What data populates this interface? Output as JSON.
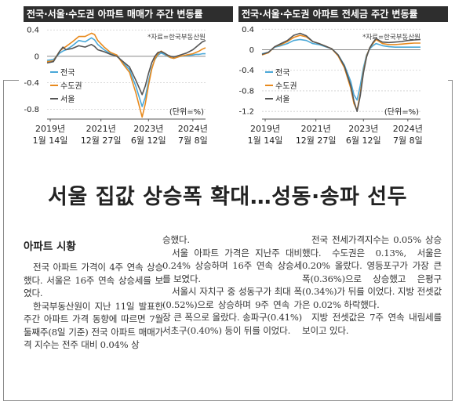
{
  "charts": [
    {
      "title": "전국·서울·수도권 아파트 매매가 주간 변동률",
      "source": "*자료=한국부동산원",
      "unit": "(단위=%)",
      "y_ticks": [
        "0.4",
        "0",
        "-0.4",
        "-0.8"
      ],
      "x_ticks": [
        [
          "2019년",
          "1월 14일"
        ],
        [
          "2021년",
          "12월 27일"
        ],
        [
          "2023년",
          "6월 12일"
        ],
        [
          "2024년",
          "7월 8일"
        ]
      ],
      "legend": [
        "전국",
        "수도권",
        "서울"
      ]
    },
    {
      "title": "전국·서울·수도권 아파트 전세금 주간 변동률",
      "source": "*자료=한국부동산원",
      "unit": "(단위=%)",
      "y_ticks": [
        "0.4",
        "0",
        "-0.4",
        "-0.8",
        "-1.2"
      ],
      "x_ticks": [
        [
          "2019년",
          "1월 14일"
        ],
        [
          "2021년",
          "12월 27일"
        ],
        [
          "2023년",
          "6월 12일"
        ],
        [
          "2024년",
          "7월 8일"
        ]
      ],
      "legend": [
        "전국",
        "수도권",
        "서울"
      ]
    }
  ],
  "chart_data": [
    {
      "type": "line",
      "ylim": [
        -0.95,
        0.45
      ],
      "x": [
        0,
        4,
        8,
        10,
        12,
        16,
        20,
        24,
        28,
        30,
        32,
        36,
        40,
        44,
        48,
        52,
        56,
        60,
        62,
        64,
        66,
        68,
        70,
        72,
        74,
        76,
        78,
        80,
        84,
        88,
        92,
        94,
        96,
        98,
        100
      ],
      "series": [
        {
          "name": "전국",
          "color": "#4aa8d8",
          "values": [
            -0.06,
            -0.05,
            0.05,
            0.08,
            0.1,
            0.16,
            0.24,
            0.22,
            0.28,
            0.25,
            0.18,
            0.1,
            0.04,
            0.02,
            -0.1,
            -0.2,
            -0.45,
            -0.76,
            -0.62,
            -0.38,
            -0.18,
            -0.05,
            0.02,
            0.05,
            0.03,
            0.0,
            -0.02,
            -0.03,
            0.0,
            0.01,
            0.02,
            0.03,
            0.03,
            0.04,
            0.04
          ]
        },
        {
          "name": "수도권",
          "color": "#e88a1e",
          "values": [
            -0.08,
            -0.07,
            0.08,
            0.12,
            0.15,
            0.22,
            0.3,
            0.3,
            0.35,
            0.33,
            0.24,
            0.14,
            0.06,
            0.02,
            -0.12,
            -0.24,
            -0.55,
            -0.92,
            -0.72,
            -0.44,
            -0.2,
            -0.04,
            0.04,
            0.08,
            0.05,
            0.01,
            -0.02,
            -0.03,
            0.0,
            0.02,
            0.04,
            0.06,
            0.08,
            0.11,
            0.13
          ]
        },
        {
          "name": "서울",
          "color": "#555555",
          "values": [
            -0.1,
            -0.08,
            0.08,
            0.14,
            0.1,
            0.12,
            0.16,
            0.14,
            0.18,
            0.15,
            0.1,
            0.07,
            0.03,
            0.0,
            -0.08,
            -0.16,
            -0.36,
            -0.58,
            -0.45,
            -0.26,
            -0.1,
            0.0,
            0.06,
            0.07,
            0.05,
            0.02,
            0.0,
            -0.01,
            0.02,
            0.05,
            0.1,
            0.14,
            0.18,
            0.22,
            0.24
          ]
        }
      ]
    },
    {
      "type": "line",
      "ylim": [
        -1.35,
        0.45
      ],
      "x": [
        0,
        4,
        8,
        12,
        16,
        20,
        24,
        28,
        32,
        36,
        40,
        44,
        48,
        52,
        56,
        58,
        60,
        62,
        64,
        66,
        68,
        70,
        72,
        74,
        76,
        80,
        84,
        88,
        92,
        96,
        100
      ],
      "series": [
        {
          "name": "전국",
          "color": "#4aa8d8",
          "values": [
            -0.08,
            -0.05,
            0.05,
            0.08,
            0.12,
            0.18,
            0.2,
            0.18,
            0.12,
            0.1,
            0.06,
            0.02,
            -0.1,
            -0.3,
            -0.62,
            -0.88,
            -0.98,
            -0.7,
            -0.35,
            -0.1,
            0.02,
            0.08,
            0.12,
            0.1,
            0.08,
            0.06,
            0.05,
            0.05,
            0.05,
            0.05,
            0.05
          ]
        },
        {
          "name": "수도권",
          "color": "#e88a1e",
          "values": [
            -0.1,
            -0.06,
            0.06,
            0.1,
            0.16,
            0.24,
            0.28,
            0.25,
            0.16,
            0.12,
            0.07,
            0.02,
            -0.12,
            -0.35,
            -0.75,
            -1.05,
            -1.18,
            -0.85,
            -0.42,
            -0.12,
            0.04,
            0.12,
            0.2,
            0.16,
            0.12,
            0.1,
            0.1,
            0.11,
            0.12,
            0.13,
            0.13
          ]
        },
        {
          "name": "서울",
          "color": "#555555",
          "values": [
            -0.09,
            -0.05,
            0.06,
            0.12,
            0.18,
            0.28,
            0.32,
            0.27,
            0.16,
            0.12,
            0.07,
            0.02,
            -0.1,
            -0.32,
            -0.7,
            -1.0,
            -1.2,
            -0.9,
            -0.45,
            -0.14,
            0.04,
            0.14,
            0.22,
            0.18,
            0.15,
            0.14,
            0.15,
            0.16,
            0.18,
            0.19,
            0.2
          ]
        }
      ]
    }
  ],
  "headline": "서울 집값 상승폭 확대…성동·송파 선두",
  "section_title": "아파트 시황",
  "columns": [
    [
      "전국 아파트 가격이 4주 연속 상승했다. 서울은 16주 연속 상승세를 보였다.",
      "한국부동산원이 지난 11일 발표한 주간 아파트 가격 동향에 따르면 7월 둘째주(8일 기준) 전국 아파트 매매가격 지수는 전주 대비 0.04% 상"
    ],
    [
      "승했다.",
      "서울 아파트 가격은 지난주 대비 0.24% 상승하며 16주 연속 상승세를 보였다.",
      "서울시 자치구 중 성동구가 최대 폭(0.52%)으로 상승하며 9주 연속 가장 큰 폭으로 올랐다. 송파구(0.41%) 서초구(0.40%) 등이 뒤를 이었다."
    ],
    [
      "전국 전세가격지수는 0.05% 상승했다. 수도권은 0.13%, 서울은 0.20% 올랐다. 영등포구가 가장 큰 폭(0.36%)으로 상승했고 은평구(0.34%)가 뒤를 이었다. 지방 전셋값은 0.02% 하락했다.",
      "지방 전셋값은 7주 연속 내림세를 보이고 있다."
    ]
  ]
}
